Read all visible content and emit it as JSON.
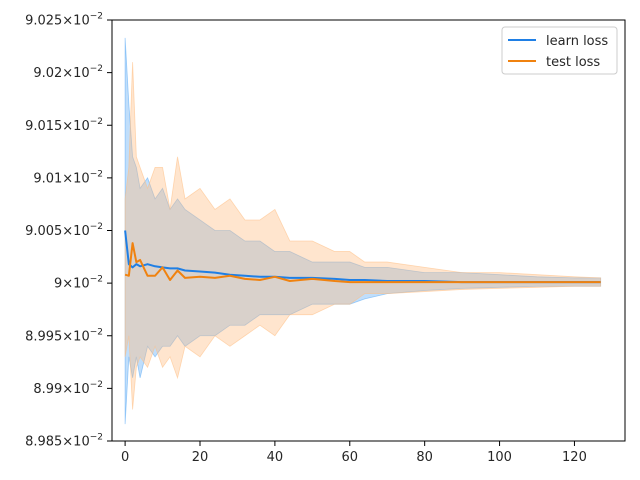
{
  "chart_data": {
    "type": "line",
    "title": "",
    "xlabel": "",
    "ylabel": "",
    "xlim": [
      -3.5,
      133.5
    ],
    "ylim": [
      0.08985,
      0.09025
    ],
    "x_ticks": [
      0,
      20,
      40,
      60,
      80,
      100,
      120
    ],
    "y_ticks": [
      {
        "value": 0.08985,
        "mantissa": "8.985",
        "exponent": "−2"
      },
      {
        "value": 0.0899,
        "mantissa": "8.99",
        "exponent": "−2"
      },
      {
        "value": 0.08995,
        "mantissa": "8.995",
        "exponent": "−2"
      },
      {
        "value": 0.09,
        "mantissa": "9",
        "exponent": "−2"
      },
      {
        "value": 0.09005,
        "mantissa": "9.005",
        "exponent": "−2"
      },
      {
        "value": 0.0901,
        "mantissa": "9.01",
        "exponent": "−2"
      },
      {
        "value": 0.09015,
        "mantissa": "9.015",
        "exponent": "−2"
      },
      {
        "value": 0.0902,
        "mantissa": "9.02",
        "exponent": "−2"
      },
      {
        "value": 0.09025,
        "mantissa": "9.025",
        "exponent": "−2"
      }
    ],
    "y_tick_base": "10",
    "y_tick_times": "×",
    "legend_position": "top-right",
    "x": [
      0,
      1,
      2,
      3,
      4,
      6,
      8,
      10,
      12,
      14,
      16,
      20,
      24,
      28,
      32,
      36,
      40,
      44,
      50,
      56,
      60,
      64,
      70,
      80,
      90,
      100,
      110,
      120,
      127
    ],
    "series": [
      {
        "name": "learn loss",
        "color": "#1f7fe5",
        "band_color": "#61adf5",
        "mean": [
          0.09005,
          0.090018,
          0.090015,
          0.090018,
          0.090016,
          0.090018,
          0.090016,
          0.090015,
          0.090014,
          0.090014,
          0.090012,
          0.090011,
          0.09001,
          0.090008,
          0.090007,
          0.090006,
          0.090006,
          0.090005,
          0.090005,
          0.090004,
          0.090003,
          0.090003,
          0.090002,
          0.090002,
          0.090001,
          0.090001,
          0.090001,
          0.090001,
          0.090001
        ],
        "upper": [
          0.090233,
          0.09017,
          0.09012,
          0.09011,
          0.09009,
          0.0901,
          0.09008,
          0.09009,
          0.09007,
          0.09008,
          0.09007,
          0.09006,
          0.09005,
          0.09005,
          0.09004,
          0.09004,
          0.09003,
          0.09003,
          0.09002,
          0.09002,
          0.09002,
          0.090015,
          0.090015,
          0.09001,
          0.09001,
          0.090008,
          0.090006,
          0.090005,
          0.090005
        ],
        "lower": [
          0.089866,
          0.08993,
          0.08991,
          0.08993,
          0.08991,
          0.08994,
          0.08993,
          0.08994,
          0.08994,
          0.08995,
          0.08994,
          0.08995,
          0.08995,
          0.08996,
          0.08996,
          0.08997,
          0.08997,
          0.08997,
          0.08998,
          0.08998,
          0.08998,
          0.089985,
          0.08999,
          0.089993,
          0.089995,
          0.089996,
          0.089997,
          0.089997,
          0.089997
        ]
      },
      {
        "name": "test loss",
        "color": "#f0820f",
        "band_color": "#ffbf85",
        "mean": [
          0.090008,
          0.090007,
          0.090038,
          0.09002,
          0.090022,
          0.090007,
          0.090007,
          0.090015,
          0.090003,
          0.090012,
          0.090005,
          0.090006,
          0.090005,
          0.090007,
          0.090004,
          0.090003,
          0.090006,
          0.090002,
          0.090004,
          0.090002,
          0.090001,
          0.090001,
          0.090001,
          0.090001,
          0.090001,
          0.090001,
          0.090001,
          0.090001,
          0.090001
        ],
        "upper": [
          0.09008,
          0.09011,
          0.09021,
          0.09012,
          0.09011,
          0.09009,
          0.09011,
          0.09011,
          0.09007,
          0.09012,
          0.09008,
          0.09009,
          0.09007,
          0.09008,
          0.09006,
          0.09006,
          0.09007,
          0.09004,
          0.09004,
          0.09003,
          0.09003,
          0.09002,
          0.09002,
          0.090015,
          0.09001,
          0.09001,
          0.090008,
          0.090006,
          0.090005
        ],
        "lower": [
          0.08993,
          0.08995,
          0.08988,
          0.08992,
          0.08993,
          0.08992,
          0.08994,
          0.08992,
          0.08993,
          0.08991,
          0.08994,
          0.08993,
          0.08995,
          0.08994,
          0.08995,
          0.08996,
          0.08995,
          0.08997,
          0.08997,
          0.08998,
          0.08998,
          0.08999,
          0.08999,
          0.089992,
          0.089994,
          0.089995,
          0.089996,
          0.089997,
          0.089997
        ]
      }
    ]
  }
}
